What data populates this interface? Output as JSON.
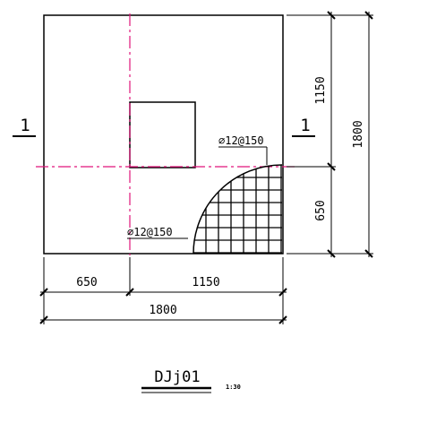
{
  "drawing": {
    "id": "DJj01",
    "scale": "1:30",
    "section_mark": "1",
    "rebar_label": "⌀12@150",
    "dims_bottom": {
      "left": "650",
      "right": "1150",
      "total": "1800"
    },
    "dims_right": {
      "upper": "1150",
      "lower": "650",
      "total": "1800"
    }
  },
  "colors": {
    "centerline": "#e0157a",
    "line": "#000000"
  }
}
